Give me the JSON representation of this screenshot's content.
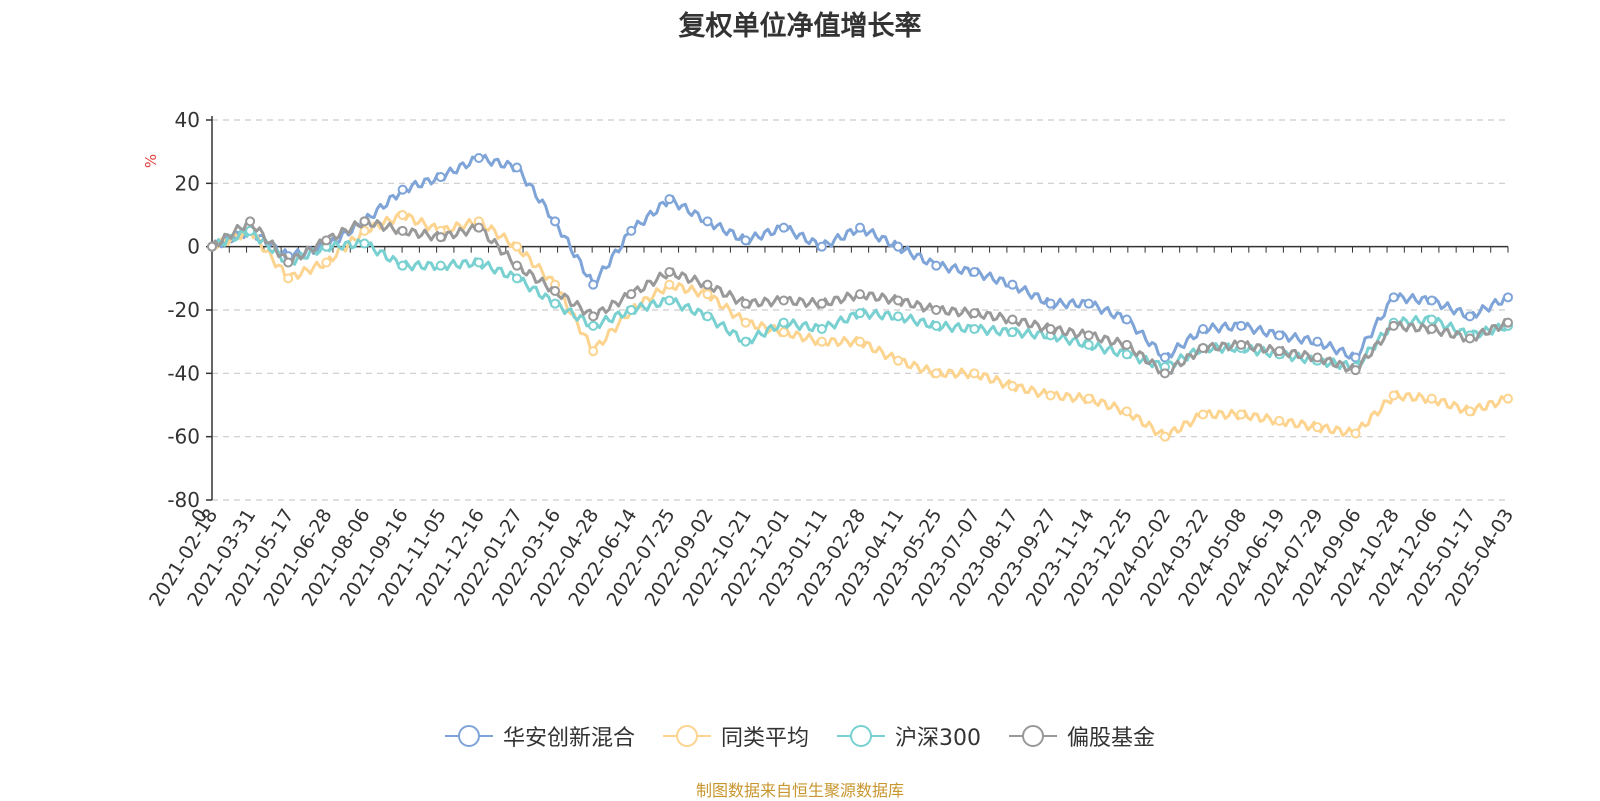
{
  "chart_data": {
    "type": "line",
    "title": "复权单位净值增长率",
    "ylabel": "%",
    "ylim": [
      -80,
      40
    ],
    "yticks": [
      40,
      20,
      0,
      -20,
      -40,
      -60,
      -80
    ],
    "grid": true,
    "legend_position": "bottom",
    "x_start_label": "0",
    "x": [
      "2021-02-18",
      "2021-03-31",
      "2021-05-17",
      "2021-06-28",
      "2021-08-06",
      "2021-09-16",
      "2021-11-05",
      "2021-12-16",
      "2022-01-27",
      "2022-03-16",
      "2022-04-28",
      "2022-06-14",
      "2022-07-25",
      "2022-09-02",
      "2022-10-21",
      "2022-12-01",
      "2023-01-11",
      "2023-02-28",
      "2023-04-11",
      "2023-05-25",
      "2023-07-07",
      "2023-08-17",
      "2023-09-27",
      "2023-11-14",
      "2023-12-25",
      "2024-02-02",
      "2024-03-22",
      "2024-05-08",
      "2024-06-19",
      "2024-07-29",
      "2024-09-06",
      "2024-10-28",
      "2024-12-06",
      "2025-01-17",
      "2025-04-03"
    ],
    "series": [
      {
        "name": "华安创新混合",
        "color": "#7fa4d8",
        "values": [
          0,
          5,
          -3,
          0,
          8,
          18,
          22,
          28,
          25,
          8,
          -12,
          5,
          15,
          8,
          2,
          6,
          0,
          6,
          0,
          -6,
          -8,
          -12,
          -18,
          -18,
          -23,
          -35,
          -26,
          -25,
          -28,
          -30,
          -35,
          -16,
          -17,
          -22,
          -16
        ]
      },
      {
        "name": "同类平均",
        "color": "#fcd48f",
        "values": [
          0,
          5,
          -10,
          -5,
          5,
          10,
          5,
          8,
          0,
          -12,
          -33,
          -20,
          -12,
          -15,
          -24,
          -27,
          -30,
          -30,
          -36,
          -40,
          -40,
          -44,
          -47,
          -48,
          -52,
          -60,
          -53,
          -53,
          -55,
          -57,
          -59,
          -47,
          -48,
          -52,
          -48
        ]
      },
      {
        "name": "沪深300",
        "color": "#79d0d0",
        "values": [
          0,
          5,
          -5,
          0,
          1,
          -6,
          -6,
          -5,
          -10,
          -18,
          -25,
          -20,
          -17,
          -22,
          -30,
          -24,
          -26,
          -21,
          -22,
          -25,
          -26,
          -27,
          -28,
          -31,
          -34,
          -38,
          -32,
          -32,
          -34,
          -36,
          -38,
          -24,
          -23,
          -28,
          -25
        ]
      },
      {
        "name": "偏股基金",
        "color": "#999999",
        "values": [
          0,
          8,
          -5,
          2,
          8,
          5,
          3,
          6,
          -6,
          -14,
          -22,
          -15,
          -8,
          -12,
          -18,
          -17,
          -18,
          -15,
          -17,
          -20,
          -21,
          -23,
          -26,
          -28,
          -31,
          -40,
          -32,
          -31,
          -33,
          -35,
          -39,
          -25,
          -26,
          -29,
          -24
        ]
      }
    ]
  },
  "source": "制图数据来自恒生聚源数据库"
}
